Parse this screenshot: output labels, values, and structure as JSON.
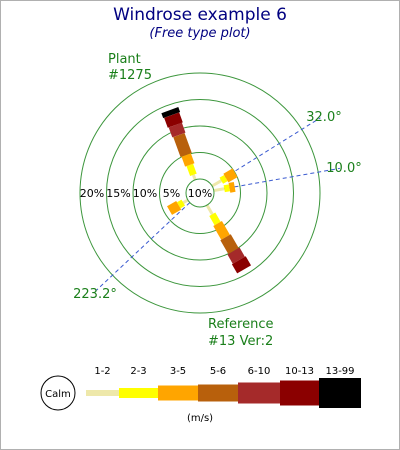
{
  "chart_data": {
    "type": "windrose",
    "title": "Windrose example 6",
    "subtitle": "(Free type plot)",
    "center_label": "10%",
    "radial_labels": [
      "20%",
      "15%",
      "10%",
      "5%"
    ],
    "radial_values": [
      20,
      15,
      10,
      5
    ],
    "grid_color": "#3c963c",
    "direction_lines": [
      {
        "angle": 32.0,
        "label": "32.0°"
      },
      {
        "angle": 10.0,
        "label": "10.0°"
      },
      {
        "angle": 223.2,
        "label": "223.2°"
      }
    ],
    "annotations": [
      "Plant",
      "#1275",
      "Reference",
      "#13 Ver:2"
    ],
    "unit": "(m/s)",
    "calm_label": "Calm",
    "ranges": [
      {
        "label": "1-2",
        "color": "#eee8aa"
      },
      {
        "label": "2-3",
        "color": "#ffff00"
      },
      {
        "label": "3-5",
        "color": "#ffa500"
      },
      {
        "label": "5-6",
        "color": "#b8600c"
      },
      {
        "label": "6-10",
        "color": "#a52a2a"
      },
      {
        "label": "10-13",
        "color": "#8b0000"
      },
      {
        "label": "13-99",
        "color": "#000000"
      }
    ],
    "series": [
      {
        "direction": 150,
        "values": [
          2,
          2,
          3,
          3,
          2,
          2,
          0
        ]
      },
      {
        "direction": 60,
        "values": [
          2,
          1,
          2,
          0,
          0,
          0,
          0
        ]
      },
      {
        "direction": 80,
        "values": [
          2,
          1,
          1,
          0,
          0,
          0,
          0
        ]
      },
      {
        "direction": 340,
        "values": [
          1,
          2,
          2,
          4,
          2,
          2,
          1
        ]
      },
      {
        "direction": 240,
        "values": [
          1,
          1,
          2,
          0,
          0,
          0,
          0
        ]
      }
    ]
  }
}
